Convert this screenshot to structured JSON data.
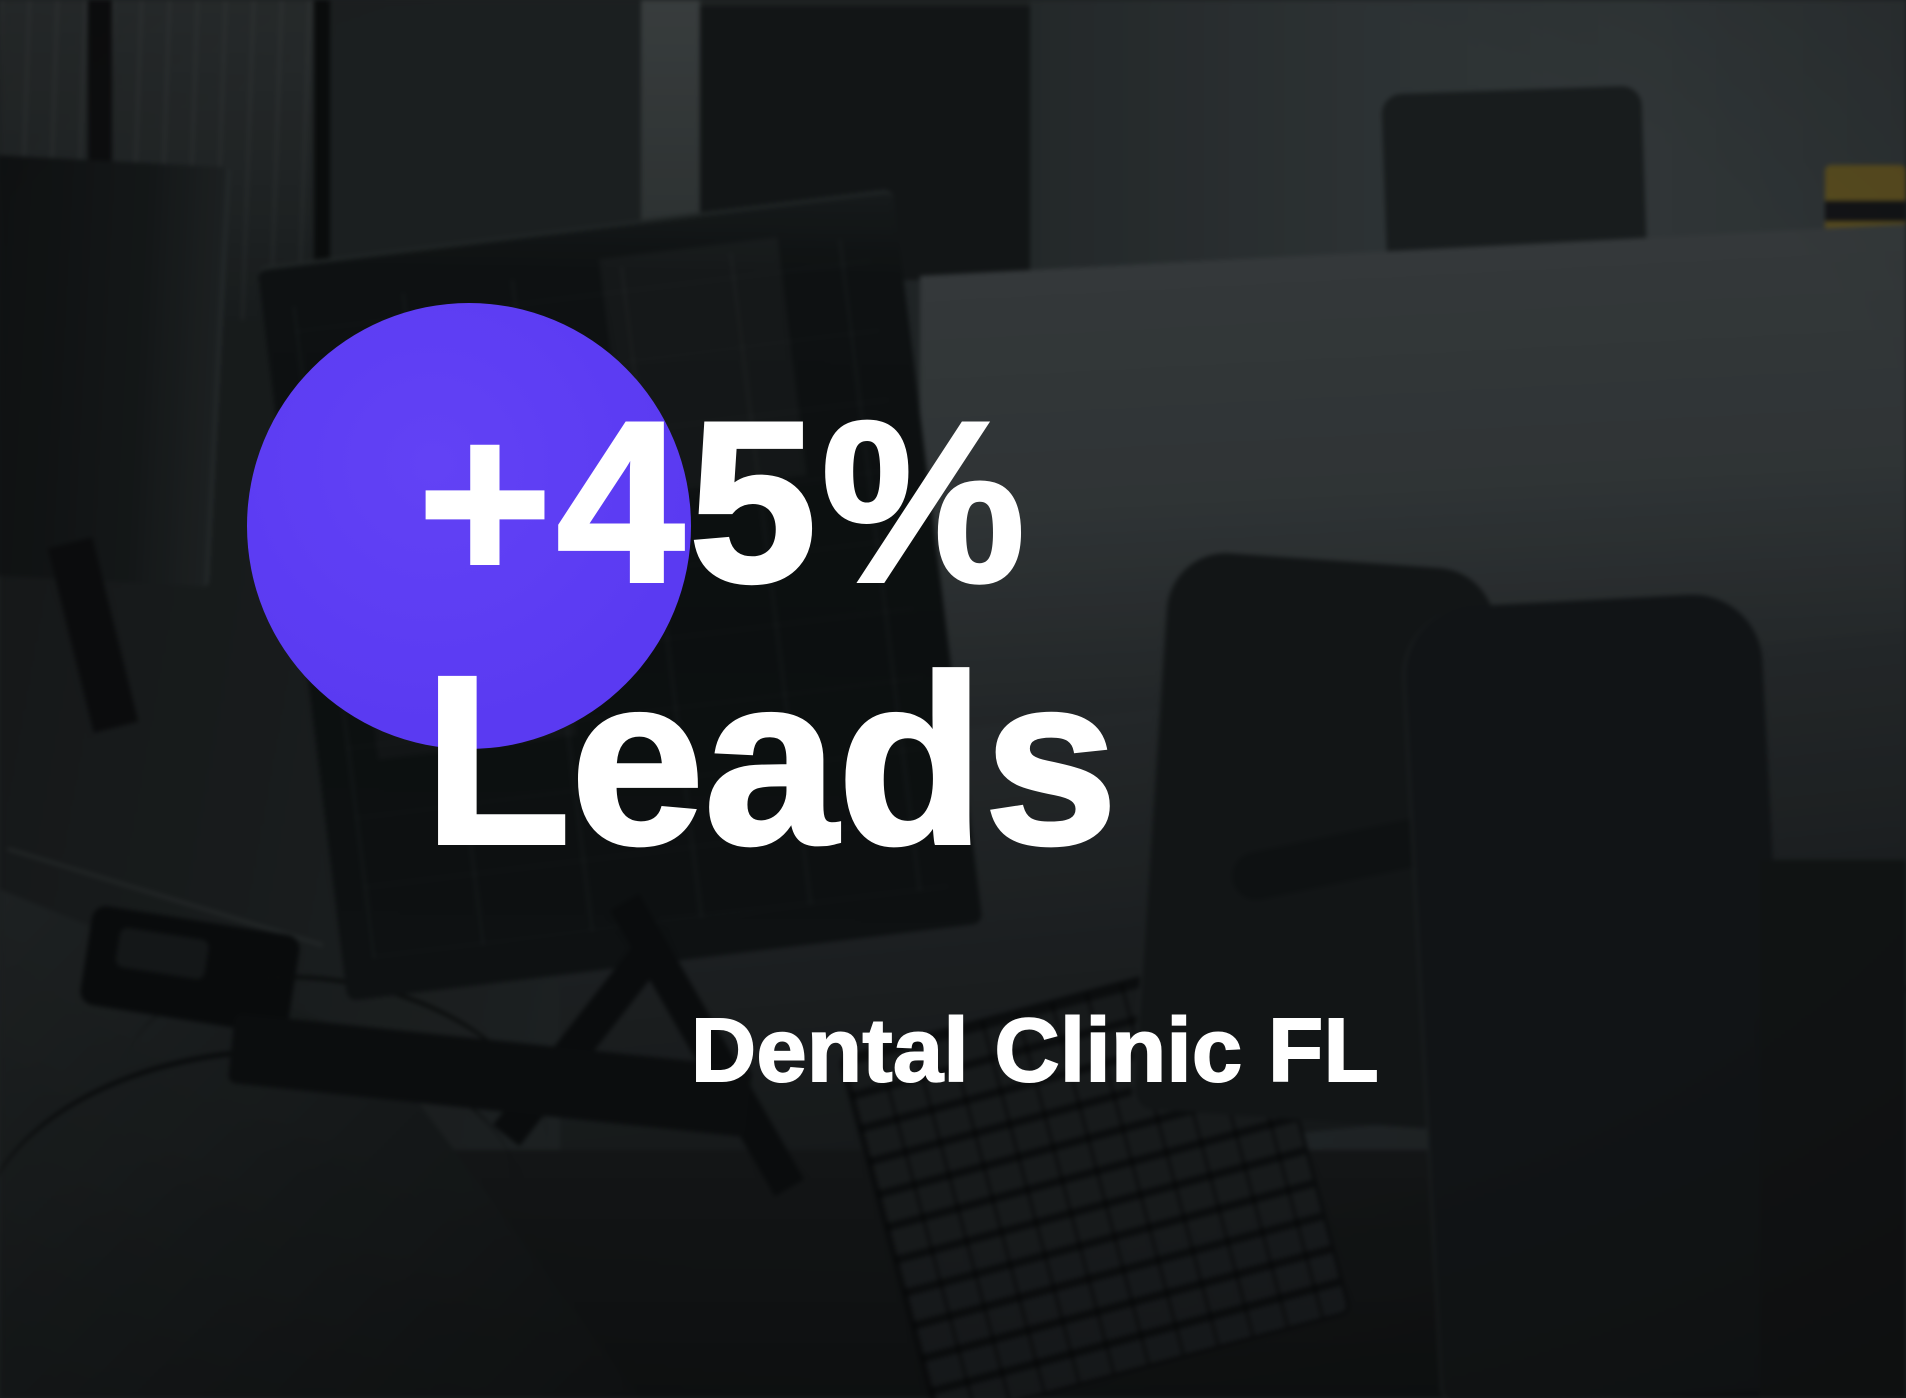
{
  "graphic": {
    "stat": "+45%",
    "metric": "Leads",
    "client": "Dental Clinic FL"
  },
  "colors": {
    "accent": "#5a3af2",
    "text": "#ffffff",
    "background": "#1b1f20"
  }
}
